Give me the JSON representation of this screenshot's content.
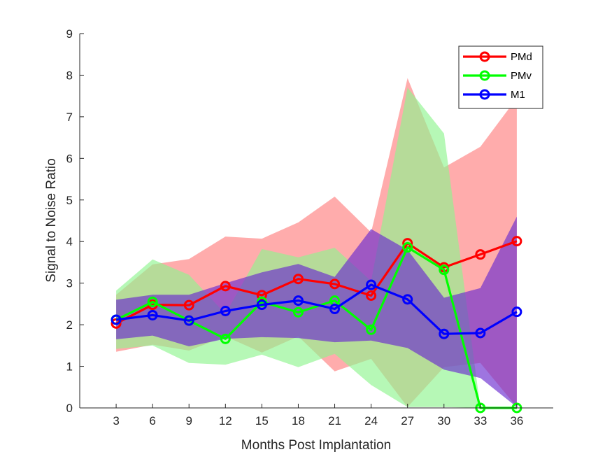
{
  "chart_data": {
    "type": "line",
    "xlabel": "Months Post Implantation",
    "ylabel": "Signal to Noise Ratio",
    "x": [
      3,
      6,
      9,
      12,
      15,
      18,
      21,
      24,
      27,
      30,
      33,
      36
    ],
    "xticks": [
      "3",
      "6",
      "9",
      "12",
      "15",
      "18",
      "21",
      "24",
      "27",
      "30",
      "33",
      "36"
    ],
    "yticks": [
      "0",
      "1",
      "2",
      "3",
      "4",
      "5",
      "6",
      "7",
      "8",
      "9"
    ],
    "xlim": [
      0,
      39
    ],
    "ylim": [
      0,
      9
    ],
    "grid": false,
    "legend": "top-right",
    "series": [
      {
        "name": "PMd",
        "color": "#ff0000",
        "band_color": "#ff8080",
        "values": [
          2.03,
          2.48,
          2.47,
          2.93,
          2.71,
          3.1,
          2.98,
          2.7,
          3.96,
          3.38,
          3.69,
          4.01
        ],
        "upper": [
          2.72,
          3.45,
          3.58,
          4.12,
          4.07,
          4.46,
          5.08,
          4.22,
          7.93,
          5.78,
          6.28,
          7.45
        ],
        "lower": [
          1.35,
          1.52,
          1.38,
          1.72,
          1.33,
          1.72,
          0.88,
          1.18,
          0.02,
          0.98,
          1.08,
          0.02
        ]
      },
      {
        "name": "PMv",
        "color": "#00ff00",
        "band_color": "#8ff58f",
        "values": [
          2.12,
          2.55,
          2.1,
          1.66,
          2.55,
          2.3,
          2.58,
          1.88,
          3.86,
          3.32,
          0.0,
          0.0
        ],
        "upper": [
          2.82,
          3.57,
          3.2,
          2.26,
          3.82,
          3.62,
          3.85,
          3.05,
          7.7,
          6.6,
          0.0,
          0.0
        ],
        "lower": [
          1.42,
          1.5,
          1.08,
          1.04,
          1.28,
          0.98,
          1.3,
          0.55,
          0.02,
          0.02,
          0.0,
          0.0
        ]
      },
      {
        "name": "M1",
        "color": "#0000ff",
        "band_color": "#6a2bd0",
        "values": [
          2.12,
          2.23,
          2.1,
          2.33,
          2.48,
          2.58,
          2.38,
          2.96,
          2.61,
          1.78,
          1.8,
          2.31
        ],
        "upper": [
          2.6,
          2.72,
          2.72,
          3.0,
          3.26,
          3.46,
          3.15,
          4.3,
          3.8,
          2.65,
          2.88,
          4.6
        ],
        "lower": [
          1.65,
          1.74,
          1.48,
          1.66,
          1.7,
          1.68,
          1.58,
          1.62,
          1.44,
          0.92,
          0.72,
          0.02
        ]
      }
    ]
  }
}
